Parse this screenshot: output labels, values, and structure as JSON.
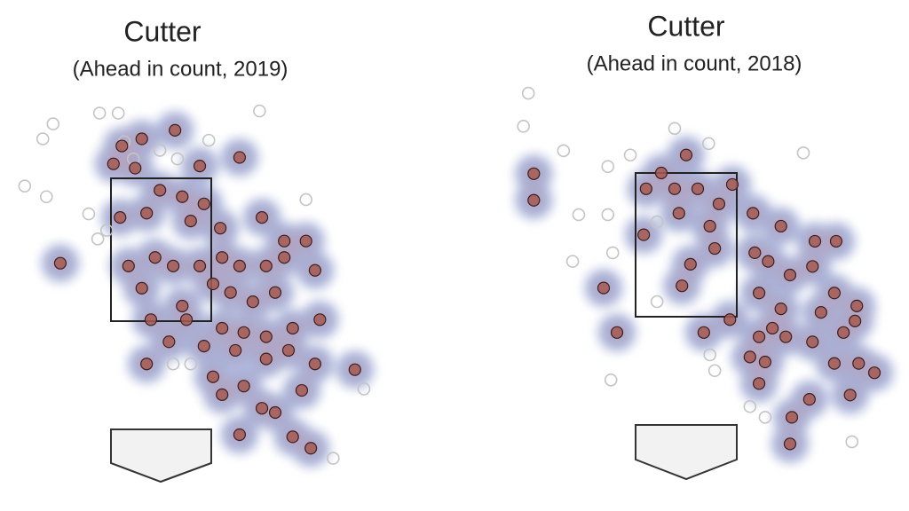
{
  "chart_data": [
    {
      "type": "scatter",
      "title": "Cutter",
      "subtitle": "(Ahead in count, 2019)",
      "xlim": [
        -2.5,
        3.5
      ],
      "ylim": [
        -0.5,
        5
      ],
      "density_color": "#8ea6d8",
      "series": [
        {
          "color": "#a65a52",
          "hollow": false,
          "x": [
            0.23,
            -0.32,
            -0.65,
            -0.79,
            0.64,
            1.3,
            -0.43,
            0.35,
            -0.02,
            -0.24,
            -0.68,
            0.71,
            0.49,
            0.98,
            1.67,
            2.04,
            2.4,
            1.01,
            1.3,
            1.74,
            2.04,
            -0.54,
            -0.1,
            0.2,
            0.64,
            -0.32,
            0.35,
            0.86,
            1.15,
            1.52,
            1.89,
            2.55,
            -0.17,
            0.42,
            1.01,
            1.37,
            1.74,
            2.18,
            2.63,
            0.13,
            0.71,
            1.23,
            1.74,
            2.11,
            2.55,
            3.21,
            -0.24,
            0.86,
            1.37,
            2.33,
            1.67,
            1.01,
            1.89,
            1.3,
            2.18,
            2.48,
            -1.67
          ],
          "values": [
            4.17,
            4.05,
            3.95,
            3.7,
            3.67,
            3.79,
            3.64,
            3.24,
            3.33,
            3.01,
            2.95,
            3.14,
            2.9,
            2.8,
            2.95,
            2.62,
            2.62,
            2.39,
            2.27,
            2.27,
            2.39,
            2.27,
            2.39,
            2.27,
            2.27,
            1.96,
            1.71,
            2.02,
            1.9,
            1.77,
            1.9,
            2.21,
            1.52,
            1.52,
            1.4,
            1.34,
            1.28,
            1.4,
            1.52,
            1.21,
            1.15,
            1.09,
            0.97,
            1.09,
            0.9,
            0.82,
            0.9,
            0.72,
            0.59,
            0.53,
            0.28,
            0.47,
            0.22,
            -0.09,
            -0.12,
            -0.28,
            2.31
          ]
        },
        {
          "color": "#c4c4c4",
          "hollow": true,
          "x": [
            -1.02,
            -0.71,
            -1.79,
            -1.96,
            0.79,
            1.63,
            -2.26,
            -1.9,
            -1.2,
            -1.05,
            -0.02,
            -0.46,
            0.27,
            2.4,
            0.2,
            0.49,
            3.36,
            2.85,
            -0.61,
            -0.9
          ],
          "values": [
            4.41,
            4.41,
            4.26,
            4.05,
            4.03,
            4.44,
            3.39,
            3.24,
            3.0,
            2.65,
            3.89,
            3.77,
            3.77,
            3.2,
            0.9,
            0.9,
            0.55,
            -0.42,
            4.01,
            2.77
          ]
        }
      ]
    },
    {
      "type": "scatter",
      "title": "Cutter",
      "subtitle": "(Ahead in count, 2018)",
      "xlim": [
        -3,
        3.5
      ],
      "ylim": [
        -0.5,
        5
      ],
      "density_color": "#8ea6d8",
      "series": [
        {
          "color": "#a65a52",
          "hollow": false,
          "x": [
            -2.51,
            -2.51,
            0.0,
            -0.41,
            -0.66,
            -0.19,
            0.19,
            0.76,
            0.54,
            -0.12,
            0.39,
            0.47,
            0.07,
            -0.07,
            1.1,
            1.56,
            1.13,
            1.35,
            1.71,
            2.12,
            2.47,
            2.08,
            2.44,
            1.2,
            1.56,
            2.22,
            2.81,
            2.78,
            2.59,
            2.08,
            1.42,
            1.2,
            1.64,
            0.72,
            0.29,
            1.05,
            1.3,
            1.2,
            2.03,
            2.44,
            2.84,
            3.1,
            2.7,
            1.74,
            1.71,
            -0.7,
            -1.14,
            -1.36
          ],
          "values": [
            3.49,
            3.12,
            3.75,
            3.5,
            3.28,
            3.28,
            3.28,
            3.34,
            3.07,
            2.94,
            2.76,
            2.45,
            2.23,
            1.93,
            2.94,
            2.76,
            2.39,
            2.27,
            2.08,
            2.55,
            2.55,
            2.2,
            1.83,
            1.83,
            1.61,
            1.56,
            1.65,
            1.44,
            1.28,
            1.15,
            1.34,
            1.22,
            1.22,
            1.46,
            1.28,
            0.94,
            0.87,
            0.57,
            0.35,
            0.85,
            0.85,
            0.72,
            0.41,
            0.1,
            -0.27,
            2.64,
            1.28,
            1.9
          ]
        },
        {
          "color": "#c4c4c4",
          "hollow": true,
          "x": [
            -2.6,
            -2.68,
            -2.02,
            -1.29,
            -0.92,
            0.37,
            -0.19,
            1.93,
            -1.77,
            -1.29,
            -1.87,
            -1.21,
            0.39,
            0.47,
            -1.24,
            1.05,
            1.3,
            2.73,
            -0.48,
            -0.48
          ],
          "values": [
            4.61,
            4.15,
            3.81,
            3.59,
            3.75,
            3.91,
            4.12,
            3.78,
            2.92,
            2.92,
            2.27,
            2.39,
            0.97,
            0.75,
            0.62,
            0.25,
            0.1,
            -0.24,
            2.82,
            1.71
          ]
        }
      ]
    }
  ]
}
